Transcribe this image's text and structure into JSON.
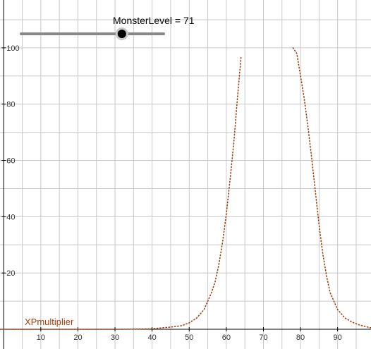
{
  "slider": {
    "caption": "MonsterLevel = 71",
    "name": "MonsterLevel",
    "value": 71,
    "min": 1,
    "max": 100,
    "track_color": "#888888",
    "knob_color": "#000000"
  },
  "function_label": "XPmultiplier",
  "colors": {
    "curve": "#a0410d",
    "grid": "#c8c8c8",
    "axis": "#000000",
    "label": "#a0410d"
  },
  "chart_data": {
    "type": "line",
    "title": "",
    "xlabel": "",
    "ylabel": "",
    "xlim": [
      -1,
      99
    ],
    "ylim": [
      -7,
      117
    ],
    "x_ticks": [
      10,
      20,
      30,
      40,
      50,
      60,
      70,
      80,
      90
    ],
    "y_ticks": [
      20,
      40,
      60,
      80,
      100
    ],
    "grid": true,
    "series": [
      {
        "name": "XPmultiplier",
        "style": "dotted",
        "x": [
          -1,
          10,
          20,
          30,
          35,
          40,
          45,
          48,
          50,
          52,
          54,
          56,
          57,
          58,
          59,
          60,
          61,
          62,
          63,
          64
        ],
        "y": [
          0,
          0,
          0,
          0,
          0.1,
          0.2,
          0.8,
          1.3,
          2.3,
          4,
          7,
          13,
          17,
          23,
          31,
          41,
          53,
          66,
          82,
          97
        ]
      },
      {
        "name": "",
        "style": "dotted",
        "x": [
          78,
          79,
          80,
          81,
          82,
          83,
          84,
          85,
          86,
          87,
          88,
          90,
          92,
          94,
          96,
          99
        ],
        "y": [
          100,
          98,
          90,
          82,
          72,
          61,
          49,
          37,
          27,
          19,
          13,
          7,
          4,
          2.5,
          1.5,
          0.5
        ]
      }
    ]
  }
}
